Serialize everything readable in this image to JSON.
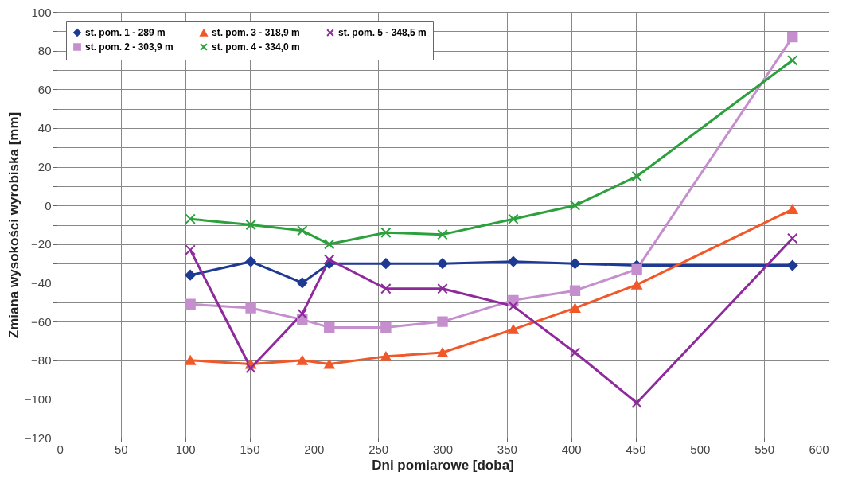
{
  "chart_data": {
    "type": "line",
    "xlabel": "Dni pomiarowe [doba]",
    "ylabel": "Zmiana wysokości wyrobiska  [mm]",
    "x": [
      104,
      151,
      191,
      212,
      256,
      300,
      355,
      403,
      451,
      572
    ],
    "series": [
      {
        "name": "st. pom. 1 - 289 m",
        "color": "#1f3a93",
        "marker": "diamond",
        "values": [
          -36,
          -29,
          -40,
          -30,
          -30,
          -30,
          -29,
          -30,
          -31,
          -31
        ]
      },
      {
        "name": "st. pom. 2 - 303,9 m",
        "color": "#c58fce",
        "marker": "square",
        "values": [
          -51,
          -53,
          -59,
          -63,
          -63,
          -60,
          -49,
          -44,
          -33,
          87
        ]
      },
      {
        "name": "st. pom. 3 - 318,9 m",
        "color": "#f0582a",
        "marker": "triangle",
        "values": [
          -80,
          -82,
          -80,
          -82,
          -78,
          -76,
          -64,
          -53,
          -41,
          -2
        ]
      },
      {
        "name": "st. pom. 4 - 334,0 m",
        "color": "#2ca03c",
        "marker": "cross",
        "values": [
          -7,
          -10,
          -13,
          -20,
          -14,
          -15,
          -7,
          0,
          15,
          75
        ]
      },
      {
        "name": "st. pom. 5 - 348,5 m",
        "color": "#8e2a9c",
        "marker": "cross",
        "values": [
          -23,
          -84,
          -56,
          -28,
          -43,
          -43,
          -52,
          -76,
          -102,
          -17
        ]
      }
    ],
    "xlim": [
      0,
      600
    ],
    "xticks": [
      0,
      50,
      100,
      150,
      200,
      250,
      300,
      350,
      400,
      450,
      500,
      550,
      600
    ],
    "ylim": [
      -120,
      100
    ],
    "yticks": [
      -120,
      {
        "value": -110,
        "label": null
      },
      -100,
      {
        "value": -90,
        "label": null
      },
      -80,
      {
        "value": -70,
        "label": null
      },
      -60,
      {
        "value": -50,
        "label": null
      },
      -40,
      {
        "value": -30,
        "label": null
      },
      -20,
      {
        "value": -10,
        "label": null
      },
      0,
      {
        "value": 10,
        "label": null
      },
      20,
      {
        "value": 30,
        "label": null
      },
      40,
      {
        "value": 50,
        "label": null
      },
      60,
      {
        "value": 70,
        "label": null
      },
      80,
      {
        "value": 90,
        "label": null
      },
      100
    ],
    "grid": true,
    "legend": "top left",
    "line_style": "solid"
  }
}
